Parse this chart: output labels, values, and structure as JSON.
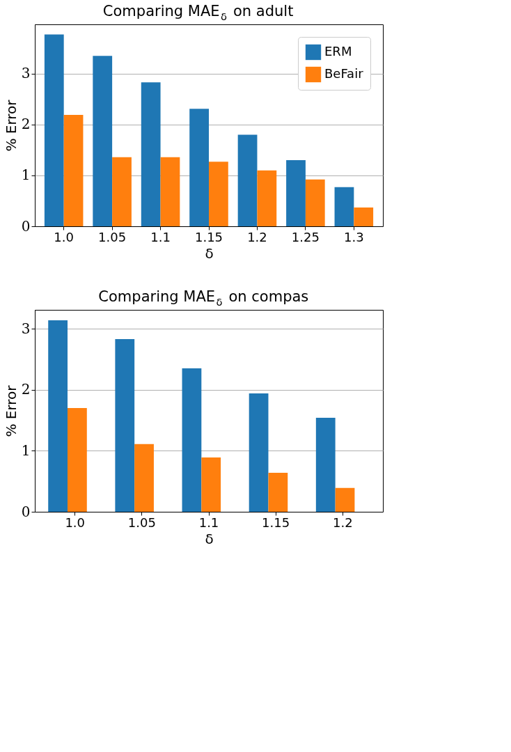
{
  "chart_data": [
    {
      "type": "bar",
      "title": "Comparing MAE$_{δ}$ on adult",
      "xlabel": "δ",
      "ylabel": "% Error",
      "categories": [
        "1.0",
        "1.05",
        "1.1",
        "1.15",
        "1.2",
        "1.25",
        "1.3"
      ],
      "series": [
        {
          "name": "ERM",
          "color": "#1f77b4",
          "values": [
            3.77,
            3.35,
            2.83,
            2.31,
            1.8,
            1.3,
            0.77
          ]
        },
        {
          "name": "BeFair",
          "color": "#ff7f0e",
          "values": [
            2.19,
            1.36,
            1.36,
            1.27,
            1.1,
            0.92,
            0.37
          ]
        }
      ],
      "ylim": [
        0,
        3.97
      ],
      "yticks": [
        0,
        1,
        2,
        3
      ],
      "grid": "y",
      "legend": "top right"
    },
    {
      "type": "bar",
      "title": "Comparing MAE$_{δ}$ on compas",
      "xlabel": "δ",
      "ylabel": "% Error",
      "categories": [
        "1.0",
        "1.05",
        "1.1",
        "1.15",
        "1.2"
      ],
      "series": [
        {
          "name": "ERM",
          "color": "#1f77b4",
          "values": [
            3.14,
            2.83,
            2.35,
            1.94,
            1.54
          ]
        },
        {
          "name": "BeFair",
          "color": "#ff7f0e",
          "values": [
            1.7,
            1.11,
            0.89,
            0.64,
            0.39
          ]
        }
      ],
      "ylim": [
        0,
        3.31
      ],
      "yticks": [
        0,
        1,
        2,
        3
      ],
      "grid": "y",
      "legend": "top right"
    }
  ]
}
